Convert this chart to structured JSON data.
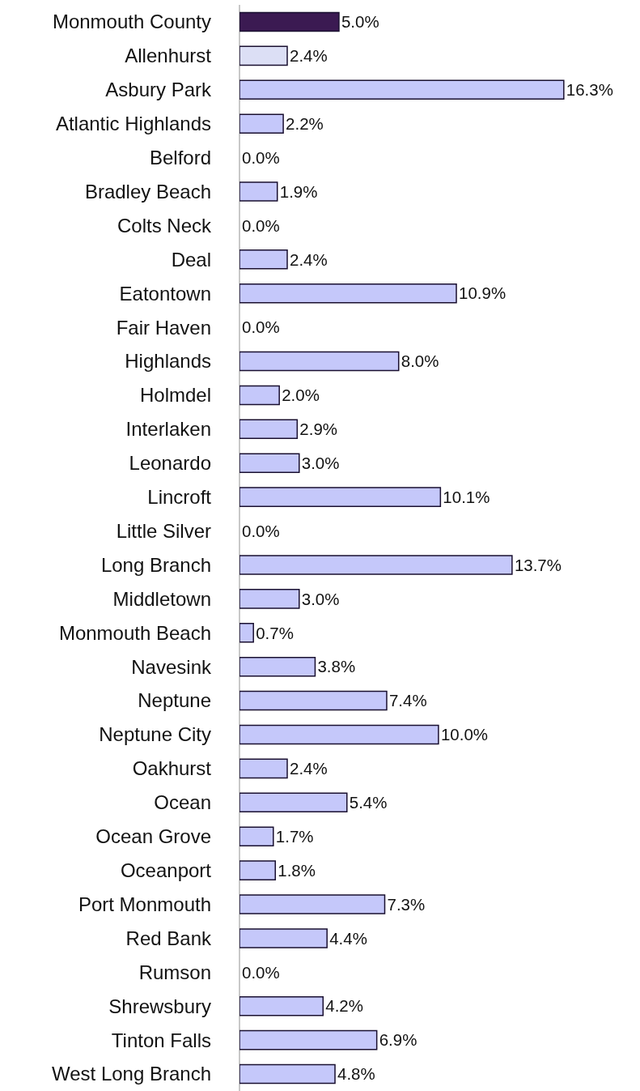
{
  "chart_data": {
    "type": "bar",
    "orientation": "horizontal",
    "grid": false,
    "categories": [
      "Monmouth County",
      "Allenhurst",
      "Asbury Park",
      "Atlantic Highlands",
      "Belford",
      "Bradley Beach",
      "Colts Neck",
      "Deal",
      "Eatontown",
      "Fair Haven",
      "Highlands",
      "Holmdel",
      "Interlaken",
      "Leonardo",
      "Lincroft",
      "Little Silver",
      "Long Branch",
      "Middletown",
      "Monmouth Beach",
      "Navesink",
      "Neptune",
      "Neptune City",
      "Oakhurst",
      "Ocean",
      "Ocean Grove",
      "Oceanport",
      "Port Monmouth",
      "Red Bank",
      "Rumson",
      "Shrewsbury",
      "Tinton Falls",
      "West Long Branch"
    ],
    "values": [
      5.0,
      2.4,
      16.3,
      2.2,
      0.0,
      1.9,
      0.0,
      2.4,
      10.9,
      0.0,
      8.0,
      2.0,
      2.9,
      3.0,
      10.1,
      0.0,
      13.7,
      3.0,
      0.7,
      3.8,
      7.4,
      10.0,
      2.4,
      5.4,
      1.7,
      1.8,
      7.3,
      4.4,
      0.0,
      4.2,
      6.9,
      4.8
    ],
    "value_labels": [
      "5.0%",
      "2.4%",
      "16.3%",
      "2.2%",
      "0.0%",
      "1.9%",
      "0.0%",
      "2.4%",
      "10.9%",
      "0.0%",
      "8.0%",
      "2.0%",
      "2.9%",
      "3.0%",
      "10.1%",
      "0.0%",
      "13.7%",
      "3.0%",
      "0.7%",
      "3.8%",
      "7.4%",
      "10.0%",
      "2.4%",
      "5.4%",
      "1.7%",
      "1.8%",
      "7.3%",
      "4.4%",
      "0.0%",
      "4.2%",
      "6.9%",
      "4.8%"
    ],
    "colors": [
      "#3b1a52",
      "#dcdff5",
      "#c5c8fa",
      "#c5c8fa",
      "#c5c8fa",
      "#c5c8fa",
      "#c5c8fa",
      "#c5c8fa",
      "#c5c8fa",
      "#c5c8fa",
      "#c5c8fa",
      "#c5c8fa",
      "#c5c8fa",
      "#c5c8fa",
      "#c5c8fa",
      "#c5c8fa",
      "#c5c8fa",
      "#c5c8fa",
      "#c5c8fa",
      "#c5c8fa",
      "#c5c8fa",
      "#c5c8fa",
      "#c5c8fa",
      "#c5c8fa",
      "#c5c8fa",
      "#c5c8fa",
      "#c5c8fa",
      "#c5c8fa",
      "#c5c8fa",
      "#c5c8fa",
      "#c5c8fa",
      "#c5c8fa"
    ]
  }
}
